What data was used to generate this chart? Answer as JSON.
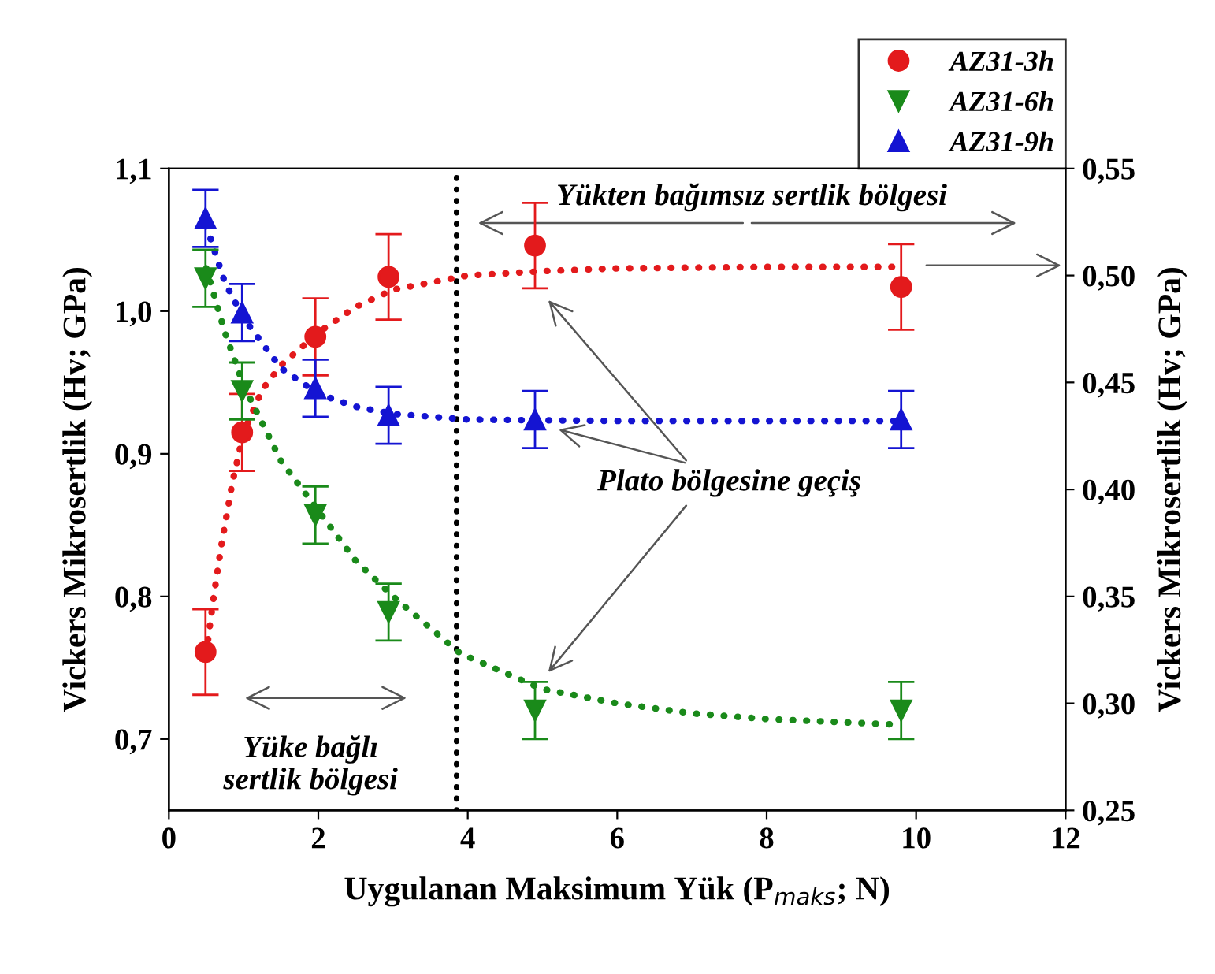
{
  "chart_data": {
    "type": "scatter",
    "xlabel": "Uygulanan Maksimum Yük (P$_{maks}$; N)",
    "ylabel": "Vickers Mikrosertlik (Hv; GPa)",
    "y2label": "Vickers Mikrosertlik (Hv; GPa)",
    "xlim": [
      0,
      12
    ],
    "xticks": [
      0,
      2,
      4,
      6,
      8,
      10,
      12
    ],
    "ylim": [
      0.65,
      1.1
    ],
    "yticks": [
      {
        "value": 0.7,
        "label": "0,7"
      },
      {
        "value": 0.8,
        "label": "0,8"
      },
      {
        "value": 0.9,
        "label": "0,9"
      },
      {
        "value": 1.0,
        "label": "1,0"
      },
      {
        "value": 1.1,
        "label": "1,1"
      }
    ],
    "y2lim": [
      0.25,
      0.55
    ],
    "y2ticks": [
      {
        "value": 0.25,
        "label": "0,25"
      },
      {
        "value": 0.3,
        "label": "0,30"
      },
      {
        "value": 0.35,
        "label": "0,35"
      },
      {
        "value": 0.4,
        "label": "0,40"
      },
      {
        "value": 0.45,
        "label": "0,45"
      },
      {
        "value": 0.5,
        "label": "0,50"
      },
      {
        "value": 0.55,
        "label": "0,55"
      }
    ],
    "legend": "top right",
    "grid": false,
    "series": [
      {
        "name": "AZ31-3h",
        "color": "#e31a1c",
        "marker": "circle",
        "x": [
          0.49,
          0.98,
          1.96,
          2.94,
          4.9,
          9.8
        ],
        "values": [
          0.761,
          0.915,
          0.982,
          1.024,
          1.046,
          1.017
        ],
        "errors": [
          0.03,
          0.027,
          0.027,
          0.03,
          0.03,
          0.03
        ]
      },
      {
        "name": "AZ31-6h",
        "color": "#1a8a1a",
        "marker": "triangle_down",
        "x": [
          0.49,
          0.98,
          1.96,
          2.94,
          4.9,
          9.8
        ],
        "values": [
          1.023,
          0.944,
          0.857,
          0.789,
          0.72,
          0.72
        ],
        "errors": [
          0.02,
          0.02,
          0.02,
          0.02,
          0.02,
          0.02
        ]
      },
      {
        "name": "AZ31-9h",
        "color": "#1414d2",
        "marker": "triangle",
        "x": [
          0.49,
          0.98,
          1.96,
          2.94,
          4.9,
          9.8
        ],
        "values": [
          1.065,
          0.999,
          0.946,
          0.927,
          0.924,
          0.924
        ],
        "errors": [
          0.02,
          0.02,
          0.02,
          0.02,
          0.02,
          0.02
        ]
      },
      {
        "type": "line",
        "color": "#e31a1c",
        "line_style": "dotted",
        "x": [
          0.5,
          0.6,
          0.7,
          0.85,
          1.0,
          1.25,
          1.5,
          2.0,
          2.5,
          3.0,
          4.0,
          5.0,
          6.0,
          8.0,
          9.8
        ],
        "values": [
          0.76,
          0.8,
          0.835,
          0.88,
          0.915,
          0.945,
          0.962,
          0.985,
          1.003,
          1.015,
          1.025,
          1.028,
          1.03,
          1.031,
          1.031
        ]
      },
      {
        "type": "line",
        "color": "#1a8a1a",
        "line_style": "dotted",
        "x": [
          0.5,
          0.75,
          1.0,
          1.5,
          2.0,
          2.5,
          3.0,
          3.9,
          5.0,
          6.0,
          7.0,
          8.0,
          9.8
        ],
        "values": [
          1.03,
          0.985,
          0.948,
          0.895,
          0.86,
          0.825,
          0.8,
          0.76,
          0.735,
          0.725,
          0.718,
          0.714,
          0.71
        ]
      },
      {
        "type": "line",
        "color": "#1414d2",
        "line_style": "dotted",
        "x": [
          0.5,
          0.75,
          1.0,
          1.5,
          2.0,
          2.5,
          3.0,
          4.0,
          6.0,
          9.8
        ],
        "values": [
          1.06,
          1.02,
          0.995,
          0.96,
          0.942,
          0.933,
          0.928,
          0.924,
          0.923,
          0.923
        ]
      }
    ],
    "ref_lines": [
      {
        "axis": "x",
        "value": 3.85,
        "color": "#000000",
        "line_style": "dotted"
      }
    ],
    "annotations": [
      "Yükten bağımsız sertlik bölgesi",
      "Plato bölgesine geçiş",
      "Yüke bağlı\nsertlik bölgesi"
    ]
  }
}
